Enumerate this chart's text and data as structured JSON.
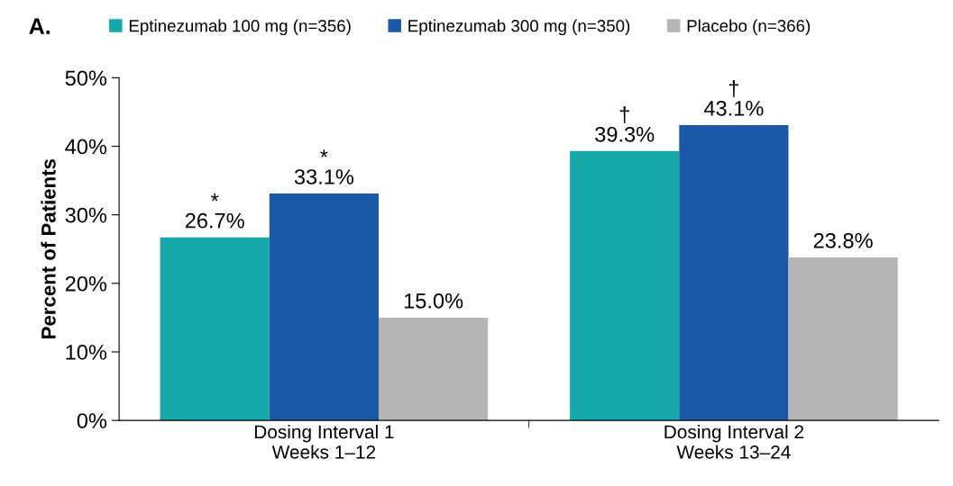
{
  "chart_data": {
    "type": "bar",
    "title": "A.",
    "ylabel": "Percent of Patients",
    "categories": [
      "Dosing Interval 1\nWeeks 1–12",
      "Dosing Interval 2\nWeeks 13–24"
    ],
    "series": [
      {
        "name": "Eptinezumab 100 mg (n=356)",
        "color": "#17a9a9",
        "values": [
          26.7,
          39.3
        ],
        "value_labels": [
          "*\n26.7%",
          "†\n39.3%"
        ]
      },
      {
        "name": "Eptinezumab 300 mg (n=350)",
        "color": "#1c58a8",
        "values": [
          33.1,
          43.1
        ],
        "value_labels": [
          "*\n33.1%",
          "†\n43.1%"
        ]
      },
      {
        "name": "Placebo (n=366)",
        "color": "#b5b5b5",
        "values": [
          15.0,
          23.8
        ],
        "value_labels": [
          "15.0%",
          "23.8%"
        ]
      }
    ],
    "ylim": [
      0,
      50
    ],
    "yticks": [
      {
        "value": 0,
        "label": "0%"
      },
      {
        "value": 10,
        "label": "10%"
      },
      {
        "value": 20,
        "label": "20%"
      },
      {
        "value": 30,
        "label": "30%"
      },
      {
        "value": 40,
        "label": "40%"
      },
      {
        "value": 50,
        "label": "50%"
      }
    ],
    "grid": false,
    "legend": "top"
  }
}
